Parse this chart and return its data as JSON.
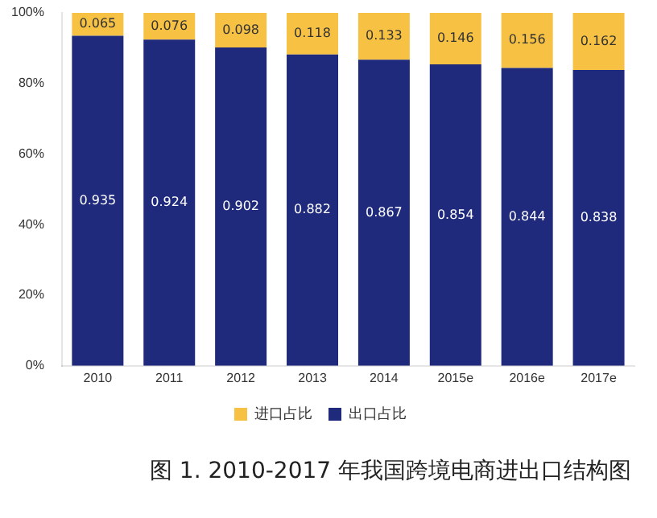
{
  "chart_data": {
    "type": "bar",
    "stacked": true,
    "categories": [
      "2010",
      "2011",
      "2012",
      "2013",
      "2014",
      "2015e",
      "2016e",
      "2017e"
    ],
    "series": [
      {
        "name": "出口占比",
        "color": "#1f2a7c",
        "values": [
          0.935,
          0.924,
          0.902,
          0.882,
          0.867,
          0.854,
          0.844,
          0.838
        ]
      },
      {
        "name": "进口占比",
        "color": "#f7c244",
        "values": [
          0.065,
          0.076,
          0.098,
          0.118,
          0.133,
          0.146,
          0.156,
          0.162
        ]
      }
    ],
    "ylim": [
      0,
      1
    ],
    "yticks": [
      {
        "value": 0,
        "label": "0%"
      },
      {
        "value": 0.2,
        "label": "20%"
      },
      {
        "value": 0.4,
        "label": "40%"
      },
      {
        "value": 0.6,
        "label": "60%"
      },
      {
        "value": 0.8,
        "label": "80%"
      },
      {
        "value": 1,
        "label": "100%"
      }
    ],
    "grid": false,
    "legend": "bottom",
    "data_labels": true,
    "annotations": [
      "图 1. 2010-2017 年我国跨境电商进出口结构图"
    ]
  }
}
